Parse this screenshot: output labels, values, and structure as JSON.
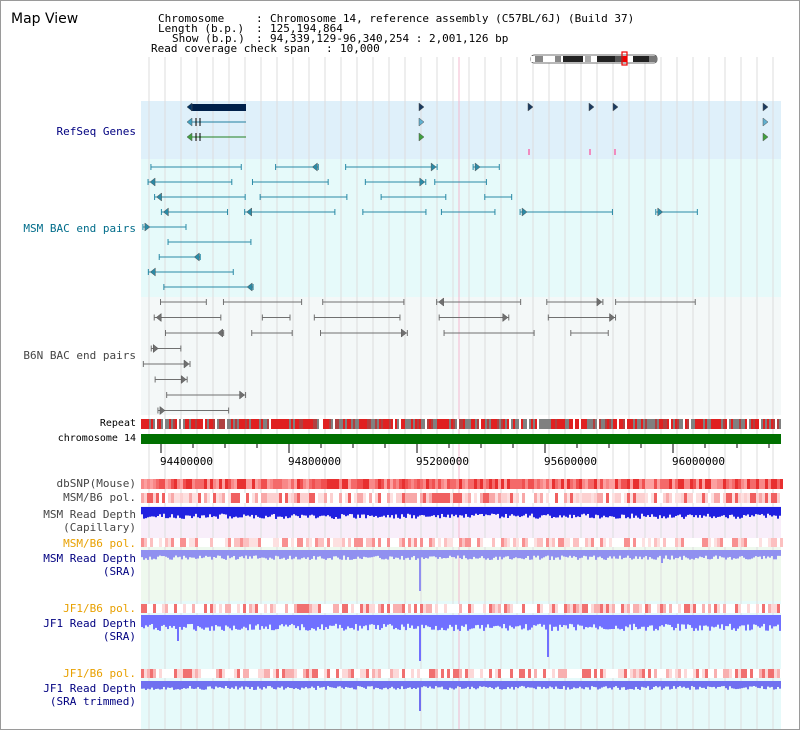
{
  "title": "Map View",
  "info": {
    "chromosome_key": "Chromosome",
    "chromosome_val": "Chromosome 14, reference assembly (C57BL/6J) (Build 37)",
    "length_key": "Length (b.p.)",
    "length_val": "125,194,864",
    "show_key": "Show (b.p.)",
    "show_val": "94,339,129-96,340,254 : 2,001,126 bp",
    "span_key": "Read coverage check span",
    "span_val": "10,000"
  },
  "tracks": {
    "refseq": "RefSeq Genes",
    "msm_bac": "MSM BAC end pairs",
    "b6n_bac": "B6N BAC end pairs",
    "repeat": "Repeat",
    "chromosome": "chromosome 14",
    "dbsnp": "dbSNP(Mouse)",
    "msm_b6_pol_1": "MSM/B6 pol.",
    "msm_depth_cap_1": "MSM Read Depth",
    "msm_depth_cap_2": "(Capillary)",
    "msm_b6_pol_2": "MSM/B6 pol.",
    "msm_depth_sra_1": "MSM Read Depth",
    "msm_depth_sra_2": "(SRA)",
    "jf1_b6_pol_1": "JF1/B6 pol.",
    "jf1_depth_sra_1": "JF1 Read Depth",
    "jf1_depth_sra_2": "(SRA)",
    "jf1_b6_pol_2": "JF1/B6 pol.",
    "jf1_depth_trim_1": "JF1 Read Depth",
    "jf1_depth_trim_2": "(SRA trimmed)"
  },
  "axis_ticks": [
    "94400000",
    "94800000",
    "95200000",
    "95600000",
    "96000000"
  ],
  "colors": {
    "refseq_bg": "#dff0fa",
    "msm_bac_bg": "#e6fafa",
    "b6n_bac_bg": "#f4f8f8",
    "chromosome_bar": "#007000",
    "depth_blue": "#1a1aff",
    "depth_lavender": "#8f8fff",
    "track_label_navy": "#000080",
    "track_label_teal": "#006c8a",
    "track_label_orange": "#e8a000"
  }
}
